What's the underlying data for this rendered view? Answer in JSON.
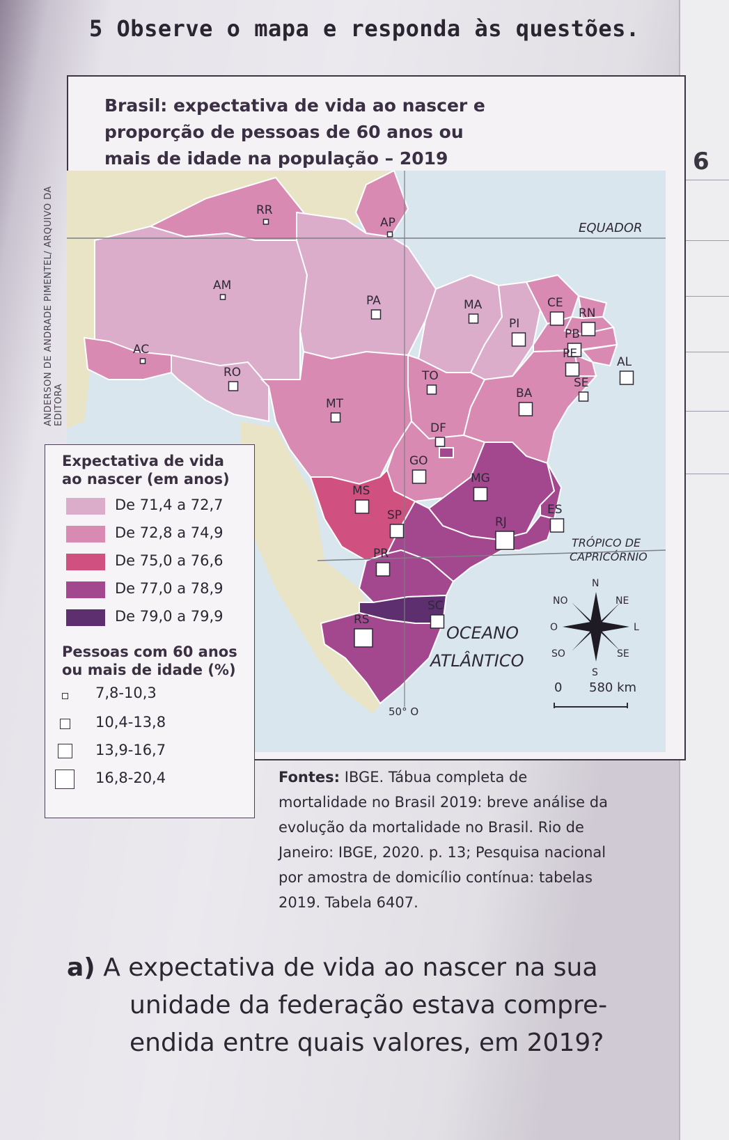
{
  "question": {
    "number": "5",
    "prompt": "Observe o mapa e responda às questões.",
    "page_marker": "6"
  },
  "map": {
    "title_lines": [
      "Brasil: expectativa de vida ao nascer e",
      "proporção de pessoas de 60 anos ou",
      "mais de idade na população – 2019"
    ],
    "credit": "ANDERSON DE ANDRADE PIMENTEL/ ARQUIVO DA EDITORA",
    "equator_label": "EQUADOR",
    "tropic_label_lines": [
      "TRÓPICO DE",
      "CAPRICÓRNIO"
    ],
    "ocean_label_lines": [
      "OCEANO",
      "ATLÂNTICO"
    ],
    "meridian_label": "50° O",
    "compass": {
      "n": "N",
      "s": "S",
      "l": "L",
      "o": "O",
      "ne": "NE",
      "no": "NO",
      "se": "SE",
      "so": "SO"
    },
    "scale": {
      "zero": "0",
      "distance": "580 km"
    },
    "states": [
      {
        "abbr": "RR",
        "life_class": 2,
        "elderly_class": 1
      },
      {
        "abbr": "AP",
        "life_class": 2,
        "elderly_class": 1
      },
      {
        "abbr": "AM",
        "life_class": 1,
        "elderly_class": 1
      },
      {
        "abbr": "PA",
        "life_class": 1,
        "elderly_class": 2
      },
      {
        "abbr": "MA",
        "life_class": 1,
        "elderly_class": 2
      },
      {
        "abbr": "CE",
        "life_class": 2,
        "elderly_class": 3
      },
      {
        "abbr": "RN",
        "life_class": 2,
        "elderly_class": 3
      },
      {
        "abbr": "PI",
        "life_class": 1,
        "elderly_class": 3
      },
      {
        "abbr": "PB",
        "life_class": 2,
        "elderly_class": 3
      },
      {
        "abbr": "PE",
        "life_class": 2,
        "elderly_class": 3
      },
      {
        "abbr": "AL",
        "life_class": 2,
        "elderly_class": 3
      },
      {
        "abbr": "SE",
        "life_class": 2,
        "elderly_class": 2
      },
      {
        "abbr": "AC",
        "life_class": 2,
        "elderly_class": 1
      },
      {
        "abbr": "RO",
        "life_class": 1,
        "elderly_class": 2
      },
      {
        "abbr": "TO",
        "life_class": 2,
        "elderly_class": 2
      },
      {
        "abbr": "BA",
        "life_class": 2,
        "elderly_class": 3
      },
      {
        "abbr": "MT",
        "life_class": 2,
        "elderly_class": 2
      },
      {
        "abbr": "DF",
        "life_class": 4,
        "elderly_class": 2
      },
      {
        "abbr": "GO",
        "life_class": 2,
        "elderly_class": 3
      },
      {
        "abbr": "MG",
        "life_class": 4,
        "elderly_class": 3
      },
      {
        "abbr": "MS",
        "life_class": 3,
        "elderly_class": 3
      },
      {
        "abbr": "ES",
        "life_class": 4,
        "elderly_class": 3
      },
      {
        "abbr": "RJ",
        "life_class": 4,
        "elderly_class": 4
      },
      {
        "abbr": "SP",
        "life_class": 4,
        "elderly_class": 3
      },
      {
        "abbr": "PR",
        "life_class": 4,
        "elderly_class": 3
      },
      {
        "abbr": "SC",
        "life_class": 5,
        "elderly_class": 3
      },
      {
        "abbr": "RS",
        "life_class": 4,
        "elderly_class": 4
      }
    ],
    "legend": {
      "life_title_lines": [
        "Expectativa de vida",
        "ao nascer (em anos)"
      ],
      "life_classes": [
        {
          "label": "De 71,4 a 72,7",
          "color": "#dcaccb"
        },
        {
          "label": "De 72,8 a 74,9",
          "color": "#d98ab2"
        },
        {
          "label": "De 75,0 a 76,6",
          "color": "#d0507f"
        },
        {
          "label": "De 77,0 a 78,9",
          "color": "#a3478f"
        },
        {
          "label": "De 79,0 a 79,9",
          "color": "#5d2f6e"
        }
      ],
      "elderly_title_lines": [
        "Pessoas com 60 anos",
        "ou mais de idade (%)"
      ],
      "elderly_classes": [
        {
          "label": "7,8-10,3"
        },
        {
          "label": "10,4-13,8"
        },
        {
          "label": "13,9-16,7"
        },
        {
          "label": "16,8-20,4"
        }
      ]
    },
    "colors": {
      "ocean": "#d9e6ee",
      "neighbors": "#e9e4c6",
      "border": "#ffffff"
    }
  },
  "source": {
    "label": "Fontes:",
    "lines": [
      "IBGE. Tábua completa de",
      "mortalidade no Brasil 2019: breve análise da",
      "evolução da mortalidade no Brasil. Rio de",
      "Janeiro: IBGE, 2020. p. 13; Pesquisa nacional",
      "por amostra de domicílio contínua: tabelas",
      "2019. Tabela 6407."
    ]
  },
  "question_a": {
    "label": "a)",
    "lines": [
      "A expectativa de vida ao nascer na sua",
      "unidade da federação estava compre-",
      "endida entre quais valores, em 2019?"
    ]
  }
}
